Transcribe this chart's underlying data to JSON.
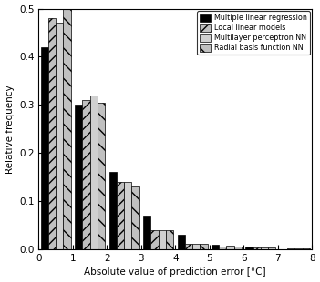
{
  "bin_edges": [
    0,
    1,
    2,
    3,
    4,
    5,
    6,
    7,
    8
  ],
  "mlr": [
    0.42,
    0.3,
    0.16,
    0.07,
    0.03,
    0.01,
    0.005,
    0.0
  ],
  "llm": [
    0.48,
    0.31,
    0.14,
    0.04,
    0.012,
    0.005,
    0.003,
    0.001
  ],
  "mlp": [
    0.47,
    0.32,
    0.14,
    0.04,
    0.012,
    0.008,
    0.003,
    0.001
  ],
  "rbf": [
    0.5,
    0.305,
    0.13,
    0.04,
    0.012,
    0.005,
    0.003,
    0.001
  ],
  "xlabel": "Absolute value of prediction error [°C]",
  "ylabel": "Relative frequency",
  "ylim": [
    0,
    0.5
  ],
  "xlim": [
    0,
    8
  ],
  "yticks": [
    0.0,
    0.1,
    0.2,
    0.3,
    0.4,
    0.5
  ],
  "xticks": [
    0,
    1,
    2,
    3,
    4,
    5,
    6,
    7,
    8
  ],
  "legend_labels": [
    "Multiple linear regression",
    "Local linear models",
    "Multilayer perceptron NN",
    "Radial basis function NN"
  ],
  "bar_width": 0.22,
  "background_color": "#ffffff",
  "mlr_color": "#000000",
  "llm_color": "#c0c0c0",
  "mlp_color": "#d0d0d0",
  "rbf_color": "#c0c0c0",
  "llm_hatch": "///",
  "rbf_hatch": "\\\\"
}
